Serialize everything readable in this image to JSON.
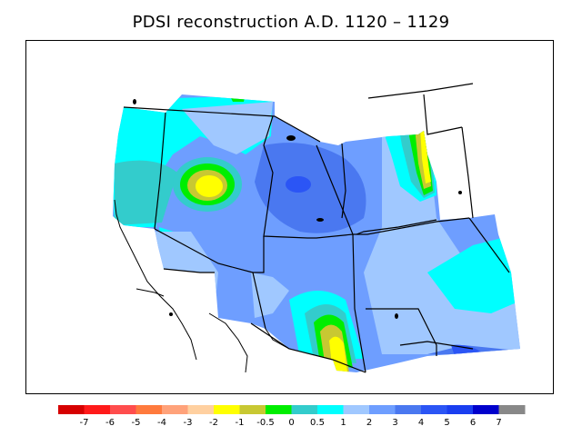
{
  "title": "PDSI reconstruction A.D. 1120 – 1129",
  "colorbar": {
    "colors": [
      "#d60000",
      "#ff1a1a",
      "#ff4d4d",
      "#ff7a3d",
      "#ffa27a",
      "#ffd0a0",
      "#ffff00",
      "#c8c832",
      "#00ee00",
      "#33cccc",
      "#00ffff",
      "#a0c8ff",
      "#6e9eff",
      "#4a78f0",
      "#2b55f5",
      "#1a3ef0",
      "#0000cc",
      "#888888"
    ],
    "labels": [
      "-7",
      "-6",
      "-5",
      "-4",
      "-3",
      "-2",
      "-1",
      "-0.5",
      "0",
      "0.5",
      "1",
      "2",
      "3",
      "4",
      "5",
      "6",
      "7"
    ]
  },
  "map_colors": {
    "class_1": "#00ffff",
    "class_2": "#a0c8ff",
    "class_3": "#6e9eff",
    "class_4": "#4a78f0",
    "class_5": "#2b55f5",
    "class_05": "#33cccc",
    "class_0": "#00ee00",
    "class_m05": "#c8c832",
    "class_m1": "#ffff00"
  }
}
